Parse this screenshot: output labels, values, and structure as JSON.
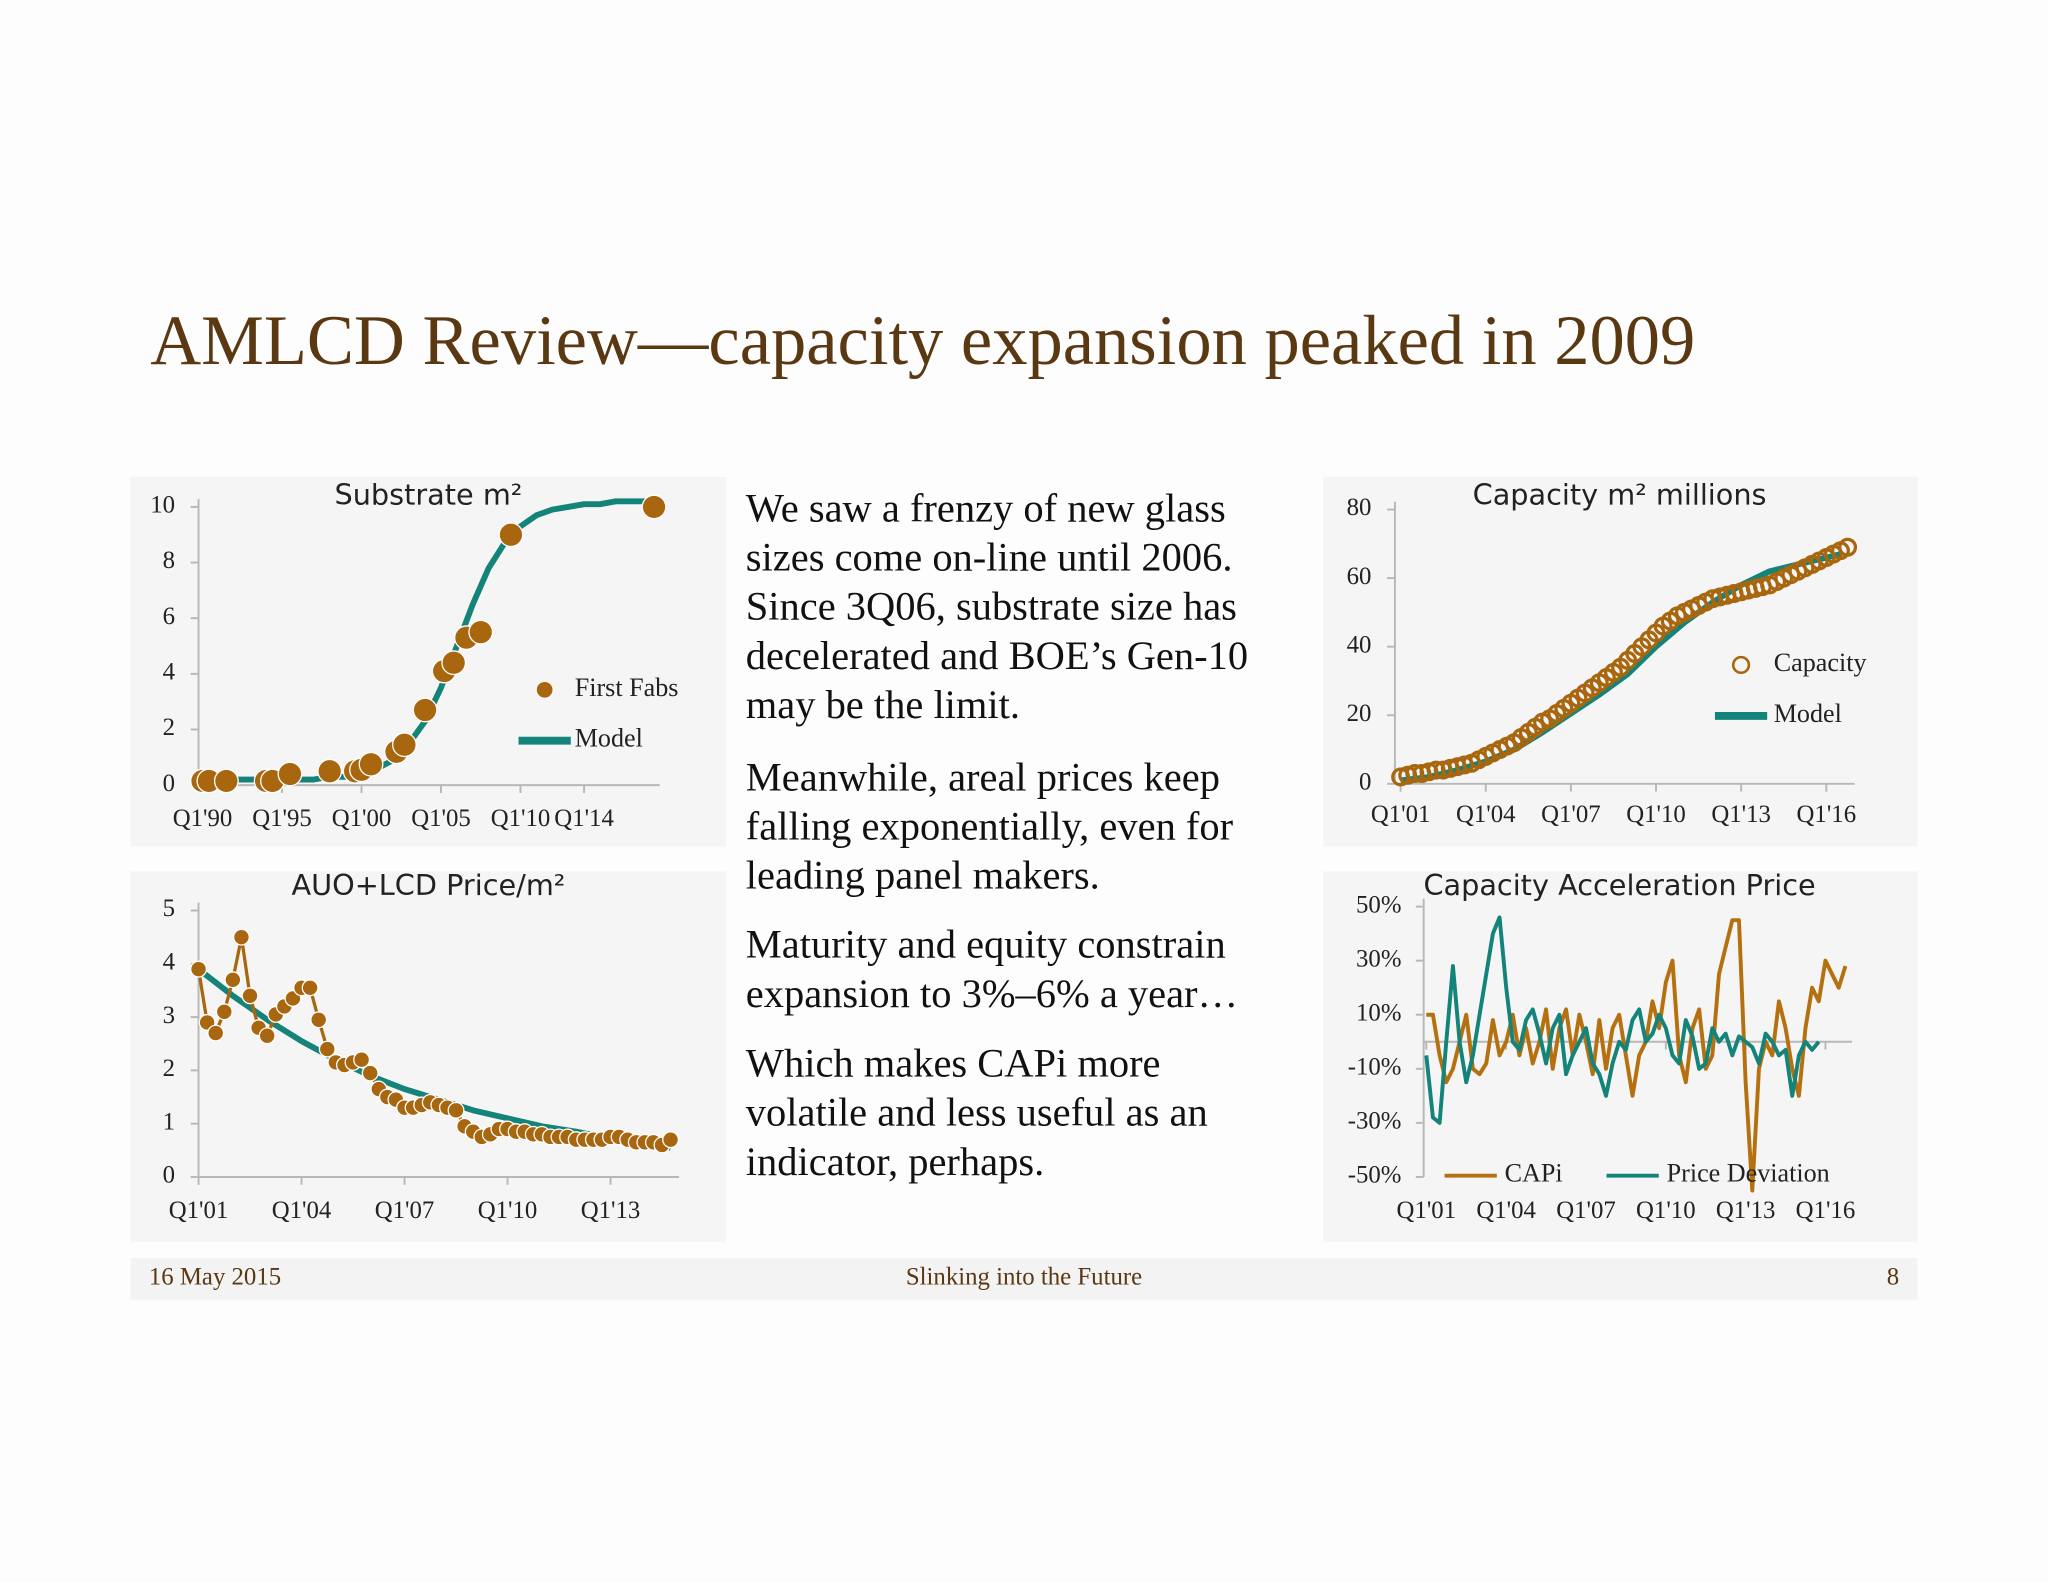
{
  "header": {
    "title": "AMLCD Review—capacity expansion peaked in 2009"
  },
  "body": {
    "paragraphs": [
      [
        "We saw a frenzy of new glass",
        "sizes come on-line until 2006.",
        "Since 3Q06, substrate size has",
        "decelerated and BOE’s Gen-10",
        "may be the limit."
      ],
      [
        "Meanwhile, areal prices keep",
        "falling exponentially, even for",
        "leading panel makers."
      ],
      [
        "Maturity and equity constrain",
        "expansion to 3%–6% a year…"
      ],
      [
        "Which makes CAPi more",
        "volatile and less useful as an",
        "indicator, perhaps."
      ]
    ]
  },
  "footer": {
    "date": "16 May 2015",
    "title": "Slinking into the Future",
    "page": 8
  },
  "chart_data": [
    {
      "type": "combo",
      "title": "Substrate m²",
      "legend": "right",
      "xlim": [
        1989.75,
        2018.75
      ],
      "ylim": [
        0,
        10
      ],
      "yticks": [
        0,
        2,
        4,
        6,
        8,
        10
      ],
      "xticks": [
        {
          "value": 1990,
          "label": "Q1'90"
        },
        {
          "value": 1995,
          "label": "Q1'95"
        },
        {
          "value": 2000,
          "label": "Q1'00"
        },
        {
          "value": 2005,
          "label": "Q1'05"
        },
        {
          "value": 2010,
          "label": "Q1'10"
        },
        {
          "value": 2014,
          "label": "Q1'14"
        }
      ],
      "series": [
        {
          "name": "First Fabs",
          "type": "scatter",
          "marker": "filled",
          "color": "#a8660e",
          "x": [
            1990,
            1990.4,
            1991.5,
            1994,
            1994.4,
            1995.5,
            1998,
            1999.6,
            2000,
            2000.6,
            2002.2,
            2002.7,
            2004,
            2005.2,
            2005.8,
            2006.6,
            2007.5,
            2009.4,
            2018.4
          ],
          "values": [
            0.15,
            0.15,
            0.15,
            0.15,
            0.15,
            0.4,
            0.5,
            0.5,
            0.55,
            0.75,
            1.2,
            1.45,
            2.7,
            4.1,
            4.4,
            5.3,
            5.5,
            9.0,
            10.0
          ]
        },
        {
          "name": "Model",
          "type": "line",
          "color": "#14837a",
          "x": [
            1991,
            1992,
            1993,
            1994,
            1995,
            1996,
            1997,
            1998,
            1999,
            2000,
            2001,
            2002,
            2003,
            2004,
            2005,
            2006,
            2007,
            2008,
            2009,
            2010,
            2011,
            2012,
            2013,
            2014,
            2015,
            2016,
            2017,
            2018
          ],
          "values": [
            0.2,
            0.2,
            0.2,
            0.2,
            0.2,
            0.2,
            0.2,
            0.3,
            0.3,
            0.4,
            0.6,
            0.9,
            1.5,
            2.3,
            3.5,
            5.0,
            6.5,
            7.8,
            8.7,
            9.3,
            9.7,
            9.9,
            10.0,
            10.1,
            10.1,
            10.2,
            10.2,
            10.2
          ]
        }
      ]
    },
    {
      "type": "combo",
      "title": "AUO+LCD Price/m²",
      "xlim": [
        2001,
        2015
      ],
      "ylim": [
        0,
        5
      ],
      "yticks": [
        0,
        1,
        2,
        3,
        4,
        5
      ],
      "xticks": [
        {
          "value": 2001,
          "label": "Q1'01"
        },
        {
          "value": 2004,
          "label": "Q1'04"
        },
        {
          "value": 2007,
          "label": "Q1'07"
        },
        {
          "value": 2010,
          "label": "Q1'10"
        },
        {
          "value": 2013,
          "label": "Q1'13"
        }
      ],
      "x": [
        2001,
        2001.25,
        2001.5,
        2001.75,
        2002,
        2002.25,
        2002.5,
        2002.75,
        2003,
        2003.25,
        2003.5,
        2003.75,
        2004,
        2004.25,
        2004.5,
        2004.75,
        2005,
        2005.25,
        2005.5,
        2005.75,
        2006,
        2006.25,
        2006.5,
        2006.75,
        2007,
        2007.25,
        2007.5,
        2007.75,
        2008,
        2008.25,
        2008.5,
        2008.75,
        2009,
        2009.25,
        2009.5,
        2009.75,
        2010,
        2010.25,
        2010.5,
        2010.75,
        2011,
        2011.25,
        2011.5,
        2011.75,
        2012,
        2012.25,
        2012.5,
        2012.75,
        2013,
        2013.25,
        2013.5,
        2013.75,
        2014,
        2014.25,
        2014.5,
        2014.75
      ],
      "series": [
        {
          "type": "scatter",
          "marker": "filled-line",
          "color": "#a8660e",
          "values": [
            3.9,
            2.9,
            2.7,
            3.1,
            3.7,
            4.5,
            3.4,
            2.8,
            2.65,
            3.05,
            3.2,
            3.35,
            3.55,
            3.55,
            2.95,
            2.4,
            2.15,
            2.1,
            2.15,
            2.2,
            1.95,
            1.65,
            1.5,
            1.45,
            1.3,
            1.3,
            1.35,
            1.4,
            1.35,
            1.3,
            1.25,
            0.95,
            0.85,
            0.75,
            0.8,
            0.9,
            0.9,
            0.85,
            0.85,
            0.8,
            0.8,
            0.75,
            0.75,
            0.75,
            0.7,
            0.7,
            0.7,
            0.7,
            0.75,
            0.75,
            0.7,
            0.65,
            0.65,
            0.65,
            0.6,
            0.7
          ]
        },
        {
          "type": "line",
          "color": "#14837a",
          "x": [
            2001,
            2002,
            2003,
            2004,
            2005,
            2006,
            2007,
            2008,
            2009,
            2010,
            2011,
            2012,
            2013,
            2014,
            2014.75
          ],
          "values": [
            3.9,
            3.4,
            2.95,
            2.55,
            2.2,
            1.9,
            1.65,
            1.45,
            1.25,
            1.1,
            0.95,
            0.85,
            0.72,
            0.62,
            0.55
          ]
        }
      ]
    },
    {
      "type": "combo",
      "title": "Capacity m² millions",
      "legend": "right",
      "xlim": [
        2000.8,
        2017
      ],
      "ylim": [
        0,
        80
      ],
      "yticks": [
        0,
        20,
        40,
        60,
        80
      ],
      "xticks": [
        {
          "value": 2001,
          "label": "Q1'01"
        },
        {
          "value": 2004,
          "label": "Q1'04"
        },
        {
          "value": 2007,
          "label": "Q1'07"
        },
        {
          "value": 2010,
          "label": "Q1'10"
        },
        {
          "value": 2013,
          "label": "Q1'13"
        },
        {
          "value": 2016,
          "label": "Q1'16"
        }
      ],
      "x": [
        2001,
        2001.25,
        2001.5,
        2001.75,
        2002,
        2002.25,
        2002.5,
        2002.75,
        2003,
        2003.25,
        2003.5,
        2003.75,
        2004,
        2004.25,
        2004.5,
        2004.75,
        2005,
        2005.25,
        2005.5,
        2005.75,
        2006,
        2006.25,
        2006.5,
        2006.75,
        2007,
        2007.25,
        2007.5,
        2007.75,
        2008,
        2008.25,
        2008.5,
        2008.75,
        2009,
        2009.25,
        2009.5,
        2009.75,
        2010,
        2010.25,
        2010.5,
        2010.75,
        2011,
        2011.25,
        2011.5,
        2011.75,
        2012,
        2012.25,
        2012.5,
        2012.75,
        2013,
        2013.25,
        2013.5,
        2013.75,
        2014,
        2014.25,
        2014.5,
        2014.75,
        2015,
        2015.25,
        2015.5,
        2015.75,
        2016,
        2016.25,
        2016.5,
        2016.75
      ],
      "series": [
        {
          "name": "Capacity",
          "type": "scatter",
          "marker": "hollow",
          "color": "#a8660e",
          "values": [
            2,
            2.5,
            3,
            3,
            3.5,
            4,
            4,
            4.5,
            5,
            5.5,
            6,
            7,
            8,
            9,
            10,
            11,
            12,
            13.5,
            15,
            16.5,
            18,
            19,
            20.5,
            22,
            23.5,
            25,
            26.5,
            28,
            29.5,
            31,
            32.5,
            34,
            36,
            38,
            40,
            42,
            44,
            46,
            47.5,
            49,
            50,
            51,
            52,
            53,
            54,
            54.5,
            55,
            55.5,
            56,
            56.5,
            57,
            57.5,
            58,
            59,
            60,
            61,
            62,
            63,
            64,
            65,
            66,
            67,
            68,
            69
          ]
        },
        {
          "name": "Model",
          "type": "line",
          "color": "#14837a",
          "x": [
            2001,
            2002,
            2003,
            2004,
            2005,
            2006,
            2007,
            2008,
            2009,
            2010,
            2011,
            2012,
            2013,
            2014,
            2015,
            2016,
            2016.5
          ],
          "values": [
            1,
            2,
            4,
            6.5,
            10,
            15,
            20.5,
            26,
            32,
            40,
            47,
            53,
            58,
            62,
            64,
            66,
            67
          ]
        }
      ]
    },
    {
      "type": "line",
      "title": "Capacity Acceleration Price",
      "legend": "bottom",
      "xlim": [
        2000.9,
        2017
      ],
      "ylim": [
        -50,
        50
      ],
      "yticks": [
        {
          "value": -50,
          "label": "-50%"
        },
        {
          "value": -30,
          "label": "-30%"
        },
        {
          "value": -10,
          "label": "-10%"
        },
        {
          "value": 10,
          "label": "10%"
        },
        {
          "value": 30,
          "label": "30%"
        },
        {
          "value": 50,
          "label": "50%"
        }
      ],
      "xticks": [
        {
          "value": 2001,
          "label": "Q1'01"
        },
        {
          "value": 2004,
          "label": "Q1'04"
        },
        {
          "value": 2007,
          "label": "Q1'07"
        },
        {
          "value": 2010,
          "label": "Q1'10"
        },
        {
          "value": 2013,
          "label": "Q1'13"
        },
        {
          "value": 2016,
          "label": "Q1'16"
        }
      ],
      "x": [
        2001,
        2001.25,
        2001.5,
        2001.75,
        2002,
        2002.25,
        2002.5,
        2002.75,
        2003,
        2003.25,
        2003.5,
        2003.75,
        2004,
        2004.25,
        2004.5,
        2004.75,
        2005,
        2005.25,
        2005.5,
        2005.75,
        2006,
        2006.25,
        2006.5,
        2006.75,
        2007,
        2007.25,
        2007.5,
        2007.75,
        2008,
        2008.25,
        2008.5,
        2008.75,
        2009,
        2009.25,
        2009.5,
        2009.75,
        2010,
        2010.25,
        2010.5,
        2010.75,
        2011,
        2011.25,
        2011.5,
        2011.75,
        2012,
        2012.25,
        2012.5,
        2012.75,
        2013,
        2013.25,
        2013.5,
        2013.75,
        2014,
        2014.25,
        2014.5,
        2014.75,
        2015,
        2015.25,
        2015.5,
        2015.75,
        2016,
        2016.25,
        2016.5,
        2016.75
      ],
      "series": [
        {
          "name": "CAPi",
          "type": "line",
          "color": "#b5700f",
          "values": [
            10,
            10,
            -5,
            -15,
            -10,
            0,
            10,
            -10,
            -12,
            -8,
            8,
            -5,
            0,
            10,
            -5,
            5,
            -8,
            0,
            12,
            -10,
            5,
            12,
            -5,
            10,
            0,
            -12,
            8,
            -10,
            5,
            10,
            -5,
            -20,
            -5,
            0,
            15,
            5,
            22,
            30,
            -5,
            -15,
            5,
            12,
            -10,
            -5,
            25,
            35,
            45,
            45,
            -15,
            -55,
            -10,
            0,
            -5,
            15,
            5,
            -10,
            -20,
            5,
            20,
            15,
            30,
            25,
            20,
            28
          ]
        },
        {
          "name": "Price Deviation",
          "type": "line",
          "color": "#14837a",
          "values": [
            -5,
            -28,
            -30,
            0,
            28,
            0,
            -15,
            -5,
            10,
            25,
            40,
            46,
            20,
            0,
            -3,
            8,
            12,
            3,
            -8,
            5,
            10,
            -12,
            -5,
            0,
            5,
            -8,
            -12,
            -20,
            -8,
            0,
            -3,
            8,
            12,
            0,
            3,
            10,
            5,
            -5,
            -8,
            8,
            2,
            -10,
            -8,
            5,
            0,
            3,
            -5,
            2,
            0,
            -2,
            -8,
            3,
            0,
            -5,
            -3,
            -20,
            -5,
            0,
            -3,
            0,
            null,
            null,
            null,
            null
          ]
        }
      ]
    }
  ]
}
